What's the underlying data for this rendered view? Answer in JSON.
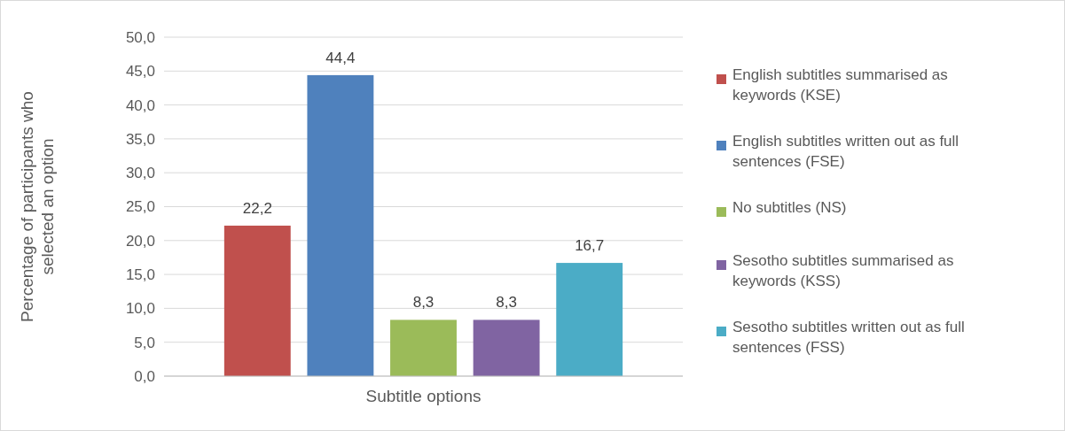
{
  "chart_data": {
    "type": "bar",
    "categories": [
      "Subtitle options"
    ],
    "ylabel": "Percentage of participants who selected an option",
    "ylim": [
      0,
      50
    ],
    "yticks": [
      {
        "value": 0,
        "label": "0,0"
      },
      {
        "value": 5,
        "label": "5,0"
      },
      {
        "value": 10,
        "label": "10,0"
      },
      {
        "value": 15,
        "label": "15,0"
      },
      {
        "value": 20,
        "label": "20,0"
      },
      {
        "value": 25,
        "label": "25,0"
      },
      {
        "value": 30,
        "label": "30,0"
      },
      {
        "value": 35,
        "label": "35,0"
      },
      {
        "value": 40,
        "label": "40,0"
      },
      {
        "value": 45,
        "label": "45,0"
      },
      {
        "value": 50,
        "label": "50,0"
      }
    ],
    "grid": "y",
    "legend": "right",
    "series": [
      {
        "name": "English subtitles summarised as keywords (KSE)",
        "color": "#c0504d",
        "values": [
          22.2
        ],
        "value_labels": [
          "22,2"
        ]
      },
      {
        "name": "English subtitles written out as full sentences (FSE)",
        "color": "#4f81bd",
        "values": [
          44.4
        ],
        "value_labels": [
          "44,4"
        ]
      },
      {
        "name": "No subtitles (NS)",
        "color": "#9bbb59",
        "values": [
          8.3
        ],
        "value_labels": [
          "8,3"
        ]
      },
      {
        "name": "Sesotho subtitles summarised as keywords (KSS)",
        "color": "#8064a2",
        "values": [
          8.3
        ],
        "value_labels": [
          "8,3"
        ]
      },
      {
        "name": "Sesotho subtitles written out as full sentences (FSS)",
        "color": "#4bacc6",
        "values": [
          16.7
        ],
        "value_labels": [
          "16,7"
        ]
      }
    ]
  }
}
